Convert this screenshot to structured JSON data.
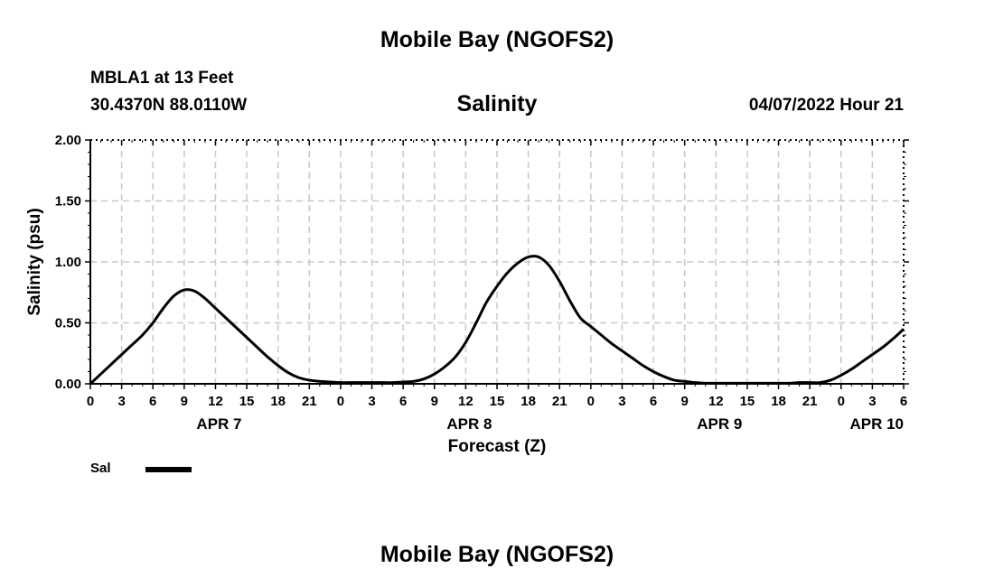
{
  "header": {
    "title": "Mobile Bay (NGOFS2)",
    "station": "MBLA1 at 13 Feet",
    "coords": "30.4370N  88.0110W",
    "plot_title": "Salinity",
    "timestamp": "04/07/2022 Hour 21"
  },
  "legend": {
    "label": "Sal"
  },
  "footer": {
    "title": "Mobile Bay (NGOFS2)"
  },
  "chart_data": {
    "type": "line",
    "title": "Salinity",
    "xlabel": "Forecast (Z)",
    "ylabel": "Salinity (psu)",
    "xlim": [
      0,
      78
    ],
    "ylim": [
      0,
      2
    ],
    "grid": true,
    "legend_position": "bottom-left",
    "line_color": "#000000",
    "grid_color": "#c8c8c8",
    "yticks": [
      "0.00",
      "0.50",
      "1.00",
      "1.50",
      "2.00"
    ],
    "xtick_labels": [
      "0",
      "3",
      "6",
      "9",
      "12",
      "15",
      "18",
      "21",
      "0",
      "3",
      "6",
      "9",
      "12",
      "15",
      "18",
      "21",
      "0",
      "3",
      "6",
      "9",
      "12",
      "15",
      "18",
      "21",
      "0",
      "3",
      "6"
    ],
    "date_labels": [
      {
        "hour": 12,
        "label": "APR 7"
      },
      {
        "hour": 36,
        "label": "APR 8"
      },
      {
        "hour": 60,
        "label": "APR 9"
      },
      {
        "hour": 78,
        "label": "APR 10"
      }
    ],
    "series": [
      {
        "name": "Sal",
        "x": [
          0,
          1,
          2,
          3,
          4,
          5,
          6,
          7,
          8,
          9,
          10,
          11,
          12,
          13,
          14,
          15,
          16,
          17,
          18,
          19,
          20,
          21,
          22,
          23,
          24,
          25,
          26,
          27,
          28,
          29,
          30,
          31,
          32,
          33,
          34,
          35,
          36,
          37,
          38,
          39,
          40,
          41,
          42,
          43,
          44,
          45,
          46,
          47,
          48,
          49,
          50,
          51,
          52,
          53,
          54,
          55,
          56,
          57,
          58,
          59,
          60,
          61,
          62,
          63,
          64,
          65,
          66,
          67,
          68,
          69,
          70,
          71,
          72,
          73,
          74,
          75,
          76,
          77,
          78
        ],
        "y": [
          0.0,
          0.08,
          0.16,
          0.24,
          0.32,
          0.4,
          0.5,
          0.62,
          0.72,
          0.77,
          0.76,
          0.7,
          0.62,
          0.54,
          0.46,
          0.38,
          0.3,
          0.22,
          0.15,
          0.09,
          0.05,
          0.03,
          0.02,
          0.015,
          0.01,
          0.01,
          0.01,
          0.01,
          0.01,
          0.01,
          0.015,
          0.02,
          0.04,
          0.08,
          0.14,
          0.22,
          0.34,
          0.5,
          0.67,
          0.8,
          0.91,
          0.99,
          1.04,
          1.04,
          0.97,
          0.84,
          0.68,
          0.54,
          0.47,
          0.4,
          0.33,
          0.27,
          0.21,
          0.15,
          0.1,
          0.06,
          0.03,
          0.02,
          0.01,
          0.005,
          0.005,
          0.005,
          0.005,
          0.005,
          0.005,
          0.005,
          0.005,
          0.005,
          0.01,
          0.01,
          0.01,
          0.03,
          0.07,
          0.12,
          0.18,
          0.24,
          0.3,
          0.37,
          0.45
        ]
      }
    ]
  }
}
